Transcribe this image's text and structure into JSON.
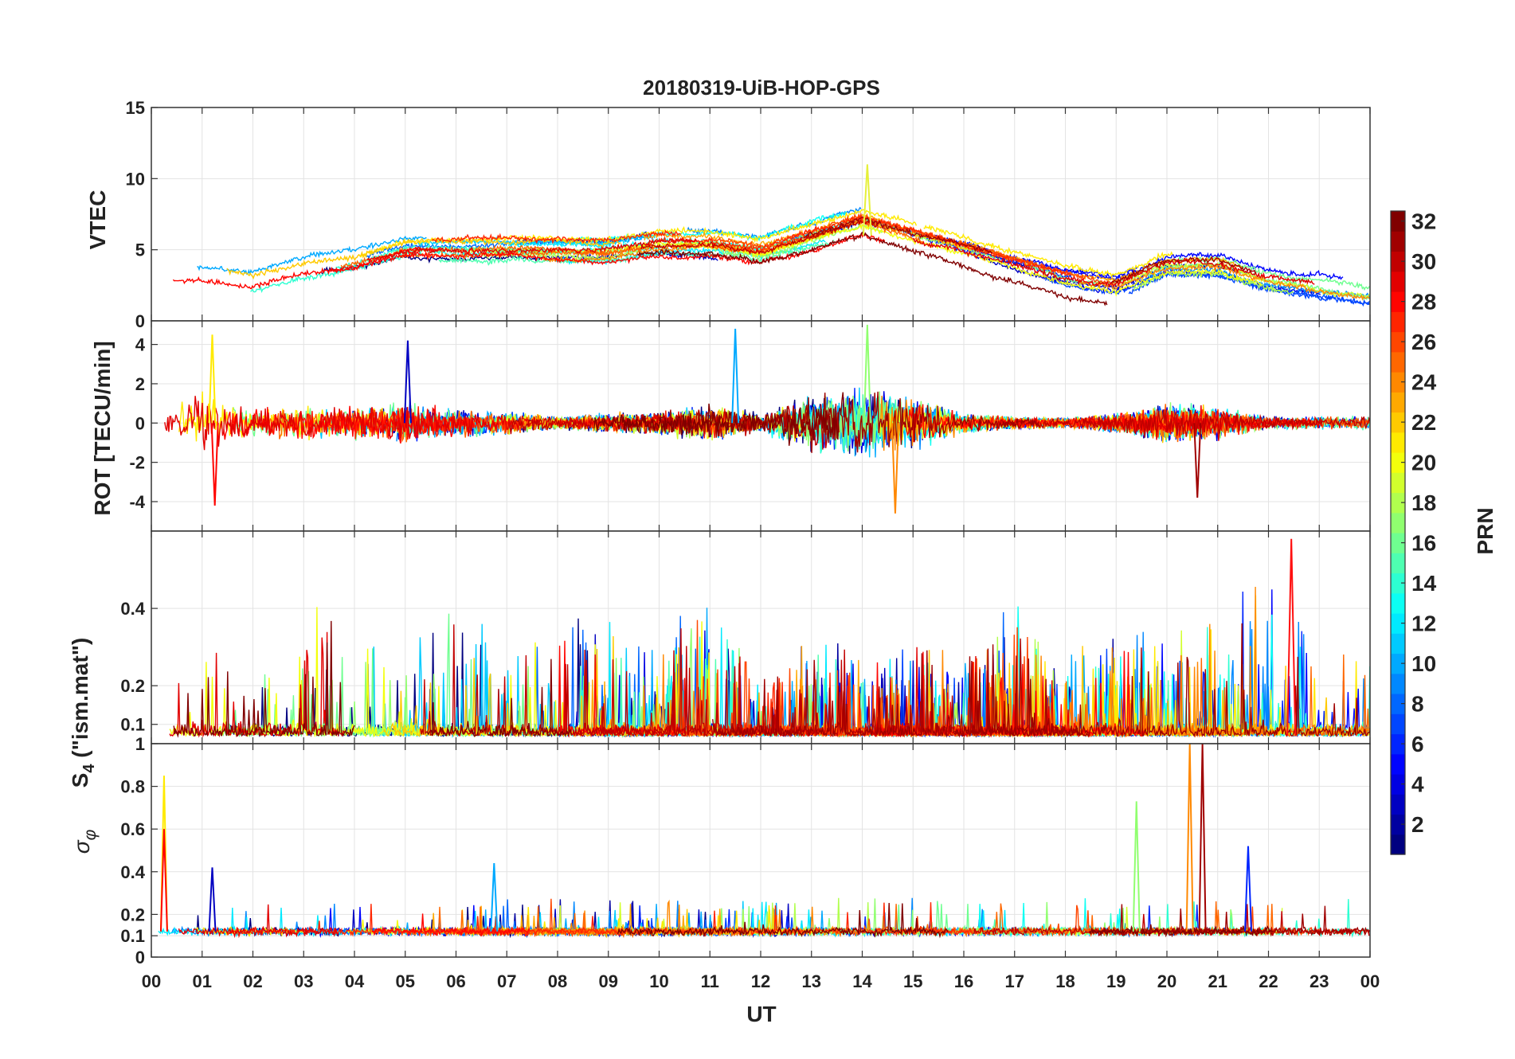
{
  "chart_data": {
    "type": "line",
    "title": "20180319-UiB-HOP-GPS",
    "xlabel": "UT",
    "x_ticks": [
      "00",
      "01",
      "02",
      "03",
      "04",
      "05",
      "06",
      "07",
      "08",
      "09",
      "10",
      "11",
      "12",
      "13",
      "14",
      "15",
      "16",
      "17",
      "18",
      "19",
      "20",
      "21",
      "22",
      "23",
      "00"
    ],
    "xlim_hours": [
      0,
      24
    ],
    "grid": true,
    "colormap": "jet",
    "colorbar": {
      "label": "PRN",
      "range": [
        1,
        32
      ],
      "ticks": [
        "2",
        "4",
        "6",
        "8",
        "10",
        "12",
        "14",
        "16",
        "18",
        "20",
        "22",
        "24",
        "26",
        "28",
        "30",
        "32"
      ],
      "placement": "right"
    },
    "panels": [
      {
        "id": "vtec",
        "ylabel": "VTEC",
        "ylim": [
          0,
          15
        ],
        "y_ticks": [
          "0",
          "5",
          "10",
          "15"
        ],
        "profile_x_hours": [
          0,
          1,
          2,
          3,
          4,
          5,
          6,
          7,
          8,
          9,
          10,
          11,
          12,
          13,
          14,
          15,
          16,
          17,
          18,
          19,
          20,
          21,
          22,
          23,
          24
        ],
        "profile_typical_vtec": [
          3,
          3,
          2.5,
          3.5,
          4,
          5,
          5,
          5,
          5,
          5,
          5.5,
          5.5,
          5,
          6,
          7,
          6,
          5,
          4,
          3,
          2.5,
          4,
          4,
          3,
          2.5,
          2
        ],
        "peak_vtec": {
          "x_hours": 14.1,
          "value": 11
        }
      },
      {
        "id": "rot",
        "ylabel": "ROT [TECU/min]",
        "ylim": [
          -5.5,
          5.2
        ],
        "y_ticks": [
          "-4",
          "-2",
          "0",
          "2",
          "4"
        ],
        "activity_x_hours": [
          0,
          1,
          2,
          3,
          4,
          5,
          6,
          7,
          8,
          9,
          10,
          11,
          12,
          13,
          14,
          15,
          16,
          17,
          18,
          19,
          20,
          21,
          22,
          23,
          24
        ],
        "activity_amplitude": [
          1.2,
          2.0,
          1.0,
          1.1,
          1.0,
          1.4,
          0.9,
          0.7,
          0.4,
          0.6,
          0.7,
          1.2,
          0.6,
          1.8,
          2.2,
          1.6,
          0.6,
          0.4,
          0.3,
          0.6,
          1.2,
          1.0,
          0.4,
          0.4,
          0.4
        ],
        "spikes": [
          {
            "x_hours": 1.2,
            "value": 4.5
          },
          {
            "x_hours": 1.25,
            "value": -4.2
          },
          {
            "x_hours": 5.05,
            "value": 4.2
          },
          {
            "x_hours": 11.5,
            "value": 4.8
          },
          {
            "x_hours": 14.1,
            "value": 5.0
          },
          {
            "x_hours": 14.65,
            "value": -4.6
          },
          {
            "x_hours": 20.6,
            "value": -3.8
          }
        ]
      },
      {
        "id": "s4",
        "ylabel": "S4 (\"ism.mat\")",
        "ylabel_main": "S",
        "ylabel_subscript": "4",
        "ylabel_suffix": " (\"ism.mat\")",
        "ylim": [
          0.05,
          0.6
        ],
        "y_ticks": [
          "0.1",
          "0.2",
          "0.4"
        ],
        "y_tick_values": [
          0.1,
          0.2,
          0.4
        ],
        "baseline": 0.07,
        "activity_x_hours": [
          0,
          1,
          2,
          3,
          4,
          5,
          6,
          7,
          8,
          9,
          10,
          11,
          12,
          13,
          14,
          15,
          16,
          17,
          18,
          19,
          20,
          21,
          22,
          23,
          24
        ],
        "activity_amplitude": [
          0.25,
          0.25,
          0.15,
          0.35,
          0.3,
          0.25,
          0.45,
          0.25,
          0.3,
          0.3,
          0.25,
          0.35,
          0.15,
          0.25,
          0.2,
          0.25,
          0.2,
          0.35,
          0.2,
          0.3,
          0.25,
          0.3,
          0.45,
          0.2,
          0.2
        ],
        "peak_s4": {
          "x_hours": 22.45,
          "value": 0.58
        }
      },
      {
        "id": "sigma_phi",
        "ylabel": "σ φ",
        "ylabel_main": "σ",
        "ylabel_subscript": "φ",
        "ylim": [
          0,
          1
        ],
        "y_ticks": [
          "0",
          "0.1",
          "0.2",
          "0.4",
          "0.6",
          "0.8",
          "1"
        ],
        "y_tick_values": [
          0,
          0.1,
          0.2,
          0.4,
          0.6,
          0.8,
          1
        ],
        "baseline": 0.12,
        "spikes": [
          {
            "x_hours": 0.25,
            "value": 0.85
          },
          {
            "x_hours": 0.25,
            "value": 0.6
          },
          {
            "x_hours": 1.2,
            "value": 0.42
          },
          {
            "x_hours": 6.75,
            "value": 0.44
          },
          {
            "x_hours": 19.4,
            "value": 0.73
          },
          {
            "x_hours": 20.45,
            "value": 1.0
          },
          {
            "x_hours": 20.7,
            "value": 1.0
          },
          {
            "x_hours": 21.6,
            "value": 0.52
          }
        ]
      }
    ]
  }
}
